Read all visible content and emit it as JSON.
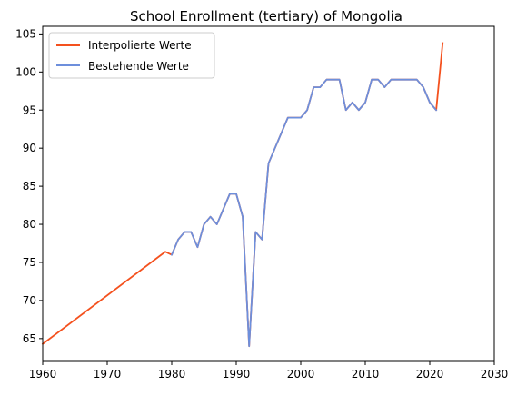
{
  "chart_data": {
    "type": "line",
    "title": "School Enrollment (tertiary) of Mongolia",
    "xlabel": "",
    "ylabel": "",
    "xlim": [
      1960,
      2030
    ],
    "ylim": [
      62,
      106
    ],
    "xticks": [
      1960,
      1970,
      1980,
      1990,
      2000,
      2010,
      2020,
      2030
    ],
    "yticks": [
      65,
      70,
      75,
      80,
      85,
      90,
      95,
      100,
      105
    ],
    "grid": false,
    "legend_position": "top-left",
    "series": [
      {
        "name": "Interpolierte Werte",
        "color": "#f4511e",
        "x": [
          1960,
          1979,
          1980,
          1981,
          1982,
          1983,
          1984,
          1985,
          1986,
          1987,
          1989,
          1990,
          1991,
          1992,
          1993,
          1994,
          1995,
          1998,
          1999,
          2000,
          2001,
          2002,
          2003,
          2004,
          2005,
          2006,
          2007,
          2008,
          2009,
          2010,
          2011,
          2012,
          2013,
          2014,
          2015,
          2016,
          2017,
          2018,
          2019,
          2020,
          2021,
          2022
        ],
        "y": [
          64.3,
          76.4,
          76.0,
          78.0,
          79.0,
          79.0,
          77.0,
          80.0,
          81.0,
          80.0,
          84.0,
          84.0,
          81.0,
          64.0,
          79.0,
          78.0,
          88.0,
          94.0,
          94.0,
          94.0,
          95.0,
          98.0,
          98.0,
          99.0,
          99.0,
          99.0,
          95.0,
          96.0,
          95.0,
          96.0,
          99.0,
          99.0,
          98.0,
          99.0,
          99.0,
          99.0,
          99.0,
          99.0,
          98.0,
          96.0,
          95.0,
          103.8
        ]
      },
      {
        "name": "Bestehende Werte",
        "color": "#6d8fdc",
        "x": [
          1980,
          1981,
          1982,
          1983,
          1984,
          1985,
          1986,
          1987,
          1989,
          1990,
          1991,
          1992,
          1993,
          1994,
          1995,
          1998,
          1999,
          2000,
          2001,
          2002,
          2003,
          2004,
          2005,
          2006,
          2007,
          2008,
          2009,
          2010,
          2011,
          2012,
          2013,
          2014,
          2015,
          2016,
          2017,
          2018,
          2019,
          2020,
          2021
        ],
        "y": [
          76.0,
          78.0,
          79.0,
          79.0,
          77.0,
          80.0,
          81.0,
          80.0,
          84.0,
          84.0,
          81.0,
          64.0,
          79.0,
          78.0,
          88.0,
          94.0,
          94.0,
          94.0,
          95.0,
          98.0,
          98.0,
          99.0,
          99.0,
          99.0,
          95.0,
          96.0,
          95.0,
          96.0,
          99.0,
          99.0,
          98.0,
          99.0,
          99.0,
          99.0,
          99.0,
          99.0,
          98.0,
          96.0,
          95.0
        ]
      }
    ]
  }
}
